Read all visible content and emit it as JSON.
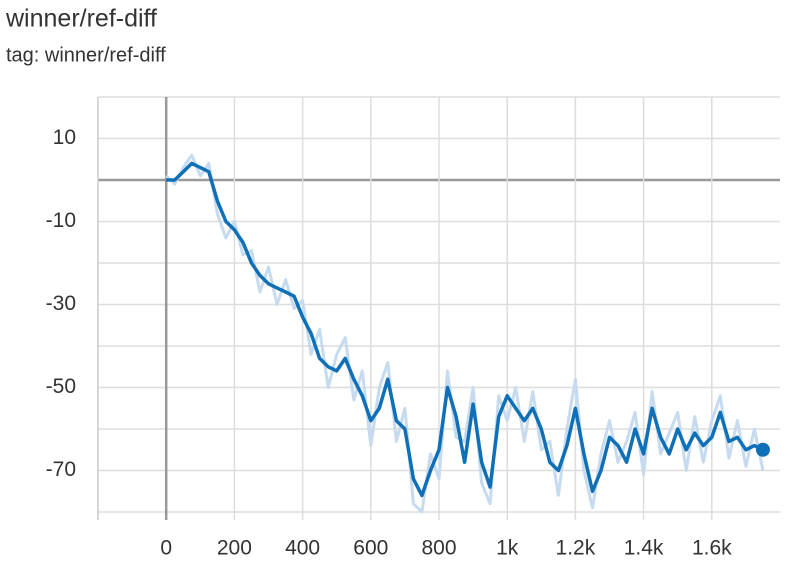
{
  "chart_data": {
    "type": "line",
    "title": "winner/ref-diff",
    "subtitle": "tag: winner/ref-diff",
    "x": [
      0,
      25,
      50,
      75,
      100,
      125,
      150,
      175,
      200,
      225,
      250,
      275,
      300,
      325,
      350,
      375,
      400,
      425,
      450,
      475,
      500,
      525,
      550,
      575,
      600,
      625,
      650,
      675,
      700,
      725,
      750,
      775,
      800,
      825,
      850,
      875,
      900,
      925,
      950,
      975,
      1000,
      1025,
      1050,
      1075,
      1100,
      1125,
      1150,
      1175,
      1200,
      1225,
      1250,
      1275,
      1300,
      1325,
      1350,
      1375,
      1400,
      1425,
      1450,
      1475,
      1500,
      1525,
      1550,
      1575,
      1600,
      1625,
      1650,
      1675,
      1700,
      1725,
      1750
    ],
    "series": [
      {
        "color": "#c6dbef",
        "values": [
          1,
          -1,
          3,
          6,
          1,
          4,
          -8,
          -14,
          -10,
          -18,
          -17,
          -27,
          -21,
          -30,
          -24,
          -31,
          -29,
          -42,
          -36,
          -50,
          -42,
          -38,
          -53,
          -46,
          -64,
          -50,
          -44,
          -63,
          -55,
          -78,
          -80,
          -66,
          -72,
          -46,
          -62,
          -63,
          -50,
          -73,
          -78,
          -52,
          -58,
          -50,
          -63,
          -51,
          -65,
          -63,
          -76,
          -60,
          -48,
          -70,
          -79,
          -66,
          -58,
          -68,
          -63,
          -56,
          -71,
          -51,
          -66,
          -61,
          -56,
          -70,
          -57,
          -68,
          -58,
          -52,
          -67,
          -58,
          -69,
          -60,
          -70
        ]
      },
      {
        "color": "#0f70b7",
        "values": [
          0,
          0,
          2,
          4,
          3,
          2,
          -5,
          -10,
          -12,
          -15,
          -20,
          -23,
          -25,
          -26,
          -27,
          -28,
          -33,
          -37,
          -43,
          -45,
          -46,
          -43,
          -48,
          -52,
          -58,
          -55,
          -48,
          -58,
          -60,
          -72,
          -76,
          -70,
          -65,
          -50,
          -57,
          -68,
          -54,
          -68,
          -74,
          -57,
          -52,
          -55,
          -58,
          -55,
          -60,
          -68,
          -70,
          -64,
          -55,
          -66,
          -75,
          -70,
          -62,
          -64,
          -68,
          -60,
          -66,
          -55,
          -62,
          -66,
          -60,
          -65,
          -61,
          -64,
          -62,
          -56,
          -63,
          -62,
          -65,
          -64,
          -65
        ]
      }
    ],
    "xlim": [
      -200,
      1800
    ],
    "ylim": [
      -80,
      20
    ],
    "xticks": [
      0,
      200,
      400,
      600,
      800,
      {
        "value": 1000,
        "label": "1k"
      },
      {
        "value": 1200,
        "label": "1.2k"
      },
      {
        "value": 1400,
        "label": "1.4k"
      },
      {
        "value": 1600,
        "label": "1.6k"
      }
    ],
    "yticks": [
      10,
      -10,
      -30,
      -50,
      -70
    ],
    "minor_yticks": [
      20,
      0,
      -20,
      -40,
      -60,
      -80
    ],
    "minor_xticks": [
      -200
    ],
    "grid": true
  }
}
